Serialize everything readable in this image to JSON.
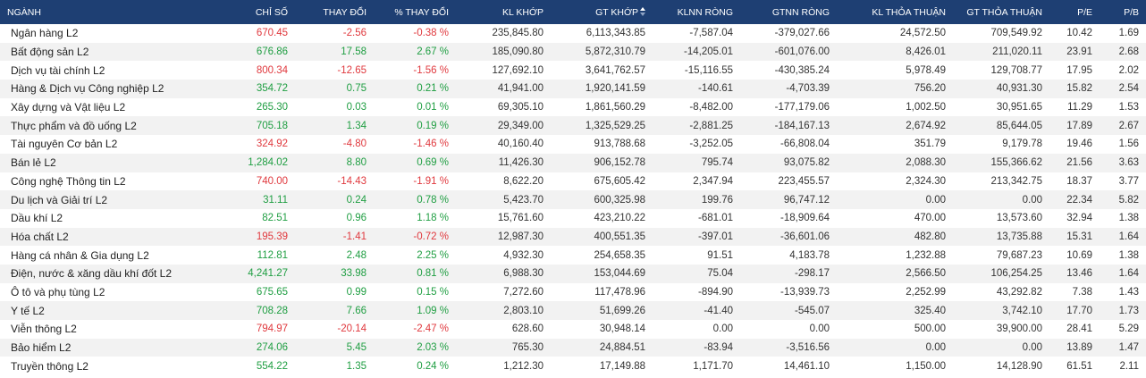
{
  "colors": {
    "header_bg": "#1e3f73",
    "up": "#1f9e42",
    "down": "#e0393e",
    "row_alt": "#f2f2f2"
  },
  "headers": {
    "nganh": "NGÀNH",
    "chi_so": "CHỈ SỐ",
    "thay_doi": "THAY ĐỔI",
    "pct_thay_doi": "% THAY ĐỔI",
    "kl_khop": "KL KHỚP",
    "gt_khop": "GT KHỚP",
    "klnn_rong": "KLNN RÒNG",
    "gtnn_rong": "GTNN RÒNG",
    "kl_thoa_thuan": "KL THỎA THUẬN",
    "gt_thoa_thuan": "GT THỎA THUẬN",
    "pe": "P/E",
    "pb": "P/B"
  },
  "sort_icon": "sort-updown-icon",
  "rows": [
    {
      "nganh": "Ngân hàng L2",
      "trend": "down",
      "chi_so": "670.45",
      "thay_doi": "-2.56",
      "pct": "-0.38 %",
      "kl_khop": "235,845.80",
      "gt_khop": "6,113,343.85",
      "klnn": "-7,587.04",
      "gtnn": "-379,027.66",
      "kl_tt": "24,572.50",
      "gt_tt": "709,549.92",
      "pe": "10.42",
      "pb": "1.69"
    },
    {
      "nganh": "Bất động sản L2",
      "trend": "up",
      "chi_so": "676.86",
      "thay_doi": "17.58",
      "pct": "2.67 %",
      "kl_khop": "185,090.80",
      "gt_khop": "5,872,310.79",
      "klnn": "-14,205.01",
      "gtnn": "-601,076.00",
      "kl_tt": "8,426.01",
      "gt_tt": "211,020.11",
      "pe": "23.91",
      "pb": "2.68"
    },
    {
      "nganh": "Dịch vụ tài chính L2",
      "trend": "down",
      "chi_so": "800.34",
      "thay_doi": "-12.65",
      "pct": "-1.56 %",
      "kl_khop": "127,692.10",
      "gt_khop": "3,641,762.57",
      "klnn": "-15,116.55",
      "gtnn": "-430,385.24",
      "kl_tt": "5,978.49",
      "gt_tt": "129,708.77",
      "pe": "17.95",
      "pb": "2.02"
    },
    {
      "nganh": "Hàng & Dịch vụ Công nghiệp L2",
      "trend": "up",
      "chi_so": "354.72",
      "thay_doi": "0.75",
      "pct": "0.21 %",
      "kl_khop": "41,941.00",
      "gt_khop": "1,920,141.59",
      "klnn": "-140.61",
      "gtnn": "-4,703.39",
      "kl_tt": "756.20",
      "gt_tt": "40,931.30",
      "pe": "15.82",
      "pb": "2.54"
    },
    {
      "nganh": "Xây dựng và Vật liệu L2",
      "trend": "up",
      "chi_so": "265.30",
      "thay_doi": "0.03",
      "pct": "0.01 %",
      "kl_khop": "69,305.10",
      "gt_khop": "1,861,560.29",
      "klnn": "-8,482.00",
      "gtnn": "-177,179.06",
      "kl_tt": "1,002.50",
      "gt_tt": "30,951.65",
      "pe": "11.29",
      "pb": "1.53"
    },
    {
      "nganh": "Thực phẩm và đồ uống L2",
      "trend": "up",
      "chi_so": "705.18",
      "thay_doi": "1.34",
      "pct": "0.19 %",
      "kl_khop": "29,349.00",
      "gt_khop": "1,325,529.25",
      "klnn": "-2,881.25",
      "gtnn": "-184,167.13",
      "kl_tt": "2,674.92",
      "gt_tt": "85,644.05",
      "pe": "17.89",
      "pb": "2.67"
    },
    {
      "nganh": "Tài nguyên Cơ bản L2",
      "trend": "down",
      "chi_so": "324.92",
      "thay_doi": "-4.80",
      "pct": "-1.46 %",
      "kl_khop": "40,160.40",
      "gt_khop": "913,788.68",
      "klnn": "-3,252.05",
      "gtnn": "-66,808.04",
      "kl_tt": "351.79",
      "gt_tt": "9,179.78",
      "pe": "19.46",
      "pb": "1.56"
    },
    {
      "nganh": "Bán lẻ L2",
      "trend": "up",
      "chi_so": "1,284.02",
      "thay_doi": "8.80",
      "pct": "0.69 %",
      "kl_khop": "11,426.30",
      "gt_khop": "906,152.78",
      "klnn": "795.74",
      "gtnn": "93,075.82",
      "kl_tt": "2,088.30",
      "gt_tt": "155,366.62",
      "pe": "21.56",
      "pb": "3.63"
    },
    {
      "nganh": "Công nghệ Thông tin L2",
      "trend": "down",
      "chi_so": "740.00",
      "thay_doi": "-14.43",
      "pct": "-1.91 %",
      "kl_khop": "8,622.20",
      "gt_khop": "675,605.42",
      "klnn": "2,347.94",
      "gtnn": "223,455.57",
      "kl_tt": "2,324.30",
      "gt_tt": "213,342.75",
      "pe": "18.37",
      "pb": "3.77"
    },
    {
      "nganh": "Du lịch và Giải trí L2",
      "trend": "up",
      "chi_so": "31.11",
      "thay_doi": "0.24",
      "pct": "0.78 %",
      "kl_khop": "5,423.70",
      "gt_khop": "600,325.98",
      "klnn": "199.76",
      "gtnn": "96,747.12",
      "kl_tt": "0.00",
      "gt_tt": "0.00",
      "pe": "22.34",
      "pb": "5.82"
    },
    {
      "nganh": "Dầu khí L2",
      "trend": "up",
      "chi_so": "82.51",
      "thay_doi": "0.96",
      "pct": "1.18 %",
      "kl_khop": "15,761.60",
      "gt_khop": "423,210.22",
      "klnn": "-681.01",
      "gtnn": "-18,909.64",
      "kl_tt": "470.00",
      "gt_tt": "13,573.60",
      "pe": "32.94",
      "pb": "1.38"
    },
    {
      "nganh": "Hóa chất L2",
      "trend": "down",
      "chi_so": "195.39",
      "thay_doi": "-1.41",
      "pct": "-0.72 %",
      "kl_khop": "12,987.30",
      "gt_khop": "400,551.35",
      "klnn": "-397.01",
      "gtnn": "-36,601.06",
      "kl_tt": "482.80",
      "gt_tt": "13,735.88",
      "pe": "15.31",
      "pb": "1.64"
    },
    {
      "nganh": "Hàng cá nhân & Gia dụng L2",
      "trend": "up",
      "chi_so": "112.81",
      "thay_doi": "2.48",
      "pct": "2.25 %",
      "kl_khop": "4,932.30",
      "gt_khop": "254,658.35",
      "klnn": "91.51",
      "gtnn": "4,183.78",
      "kl_tt": "1,232.88",
      "gt_tt": "79,687.23",
      "pe": "10.69",
      "pb": "1.38"
    },
    {
      "nganh": "Điện, nước & xăng dầu khí đốt L2",
      "trend": "up",
      "chi_so": "4,241.27",
      "thay_doi": "33.98",
      "pct": "0.81 %",
      "kl_khop": "6,988.30",
      "gt_khop": "153,044.69",
      "klnn": "75.04",
      "gtnn": "-298.17",
      "kl_tt": "2,566.50",
      "gt_tt": "106,254.25",
      "pe": "13.46",
      "pb": "1.64"
    },
    {
      "nganh": "Ô tô và phụ tùng L2",
      "trend": "up",
      "chi_so": "675.65",
      "thay_doi": "0.99",
      "pct": "0.15 %",
      "kl_khop": "7,272.60",
      "gt_khop": "117,478.96",
      "klnn": "-894.90",
      "gtnn": "-13,939.73",
      "kl_tt": "2,252.99",
      "gt_tt": "43,292.82",
      "pe": "7.38",
      "pb": "1.43"
    },
    {
      "nganh": "Y tế L2",
      "trend": "up",
      "chi_so": "708.28",
      "thay_doi": "7.66",
      "pct": "1.09 %",
      "kl_khop": "2,803.10",
      "gt_khop": "51,699.26",
      "klnn": "-41.40",
      "gtnn": "-545.07",
      "kl_tt": "325.40",
      "gt_tt": "3,742.10",
      "pe": "17.70",
      "pb": "1.73"
    },
    {
      "nganh": "Viễn thông L2",
      "trend": "down",
      "chi_so": "794.97",
      "thay_doi": "-20.14",
      "pct": "-2.47 %",
      "kl_khop": "628.60",
      "gt_khop": "30,948.14",
      "klnn": "0.00",
      "gtnn": "0.00",
      "kl_tt": "500.00",
      "gt_tt": "39,900.00",
      "pe": "28.41",
      "pb": "5.29"
    },
    {
      "nganh": "Bảo hiểm L2",
      "trend": "up",
      "chi_so": "274.06",
      "thay_doi": "5.45",
      "pct": "2.03 %",
      "kl_khop": "765.30",
      "gt_khop": "24,884.51",
      "klnn": "-83.94",
      "gtnn": "-3,516.56",
      "kl_tt": "0.00",
      "gt_tt": "0.00",
      "pe": "13.89",
      "pb": "1.47"
    },
    {
      "nganh": "Truyền thông L2",
      "trend": "up",
      "chi_so": "554.22",
      "thay_doi": "1.35",
      "pct": "0.24 %",
      "kl_khop": "1,212.30",
      "gt_khop": "17,149.88",
      "klnn": "1,171.70",
      "gtnn": "14,461.10",
      "kl_tt": "1,150.00",
      "gt_tt": "14,128.90",
      "pe": "61.51",
      "pb": "2.11"
    }
  ]
}
